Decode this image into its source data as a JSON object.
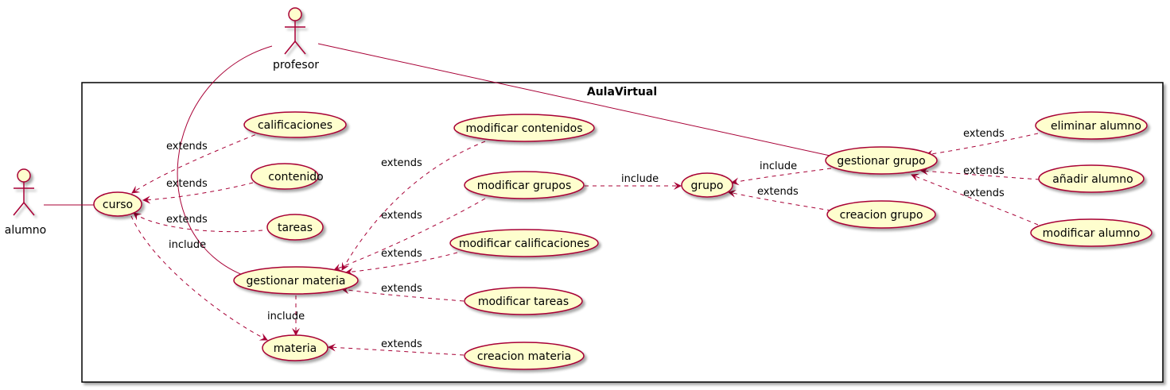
{
  "colors": {
    "usecase_fill": "#FEFECE",
    "stroke": "#A80036",
    "frame": "#000000",
    "background": "#FFFFFF"
  },
  "system": {
    "title": "AulaVirtual"
  },
  "actors": {
    "profesor": "profesor",
    "alumno": "alumno"
  },
  "usecases": {
    "calificaciones": "calificaciones",
    "contenido": "contenido",
    "tareas": "tareas",
    "curso": "curso",
    "gestionar_materia": "gestionar materia",
    "materia": "materia",
    "modificar_contenidos": "modificar contenidos",
    "modificar_grupos": "modificar grupos",
    "modificar_calificaciones": "modificar calificaciones",
    "modificar_tareas": "modificar tareas",
    "creacion_materia": "creacion materia",
    "grupo": "grupo",
    "creacion_grupo": "creacion grupo",
    "gestionar_grupo": "gestionar grupo",
    "eliminar_alumno": "eliminar alumno",
    "anadir_alumno": "añadir alumno",
    "modificar_alumno": "modificar alumno"
  },
  "relations": {
    "extends": "extends",
    "include": "include"
  }
}
